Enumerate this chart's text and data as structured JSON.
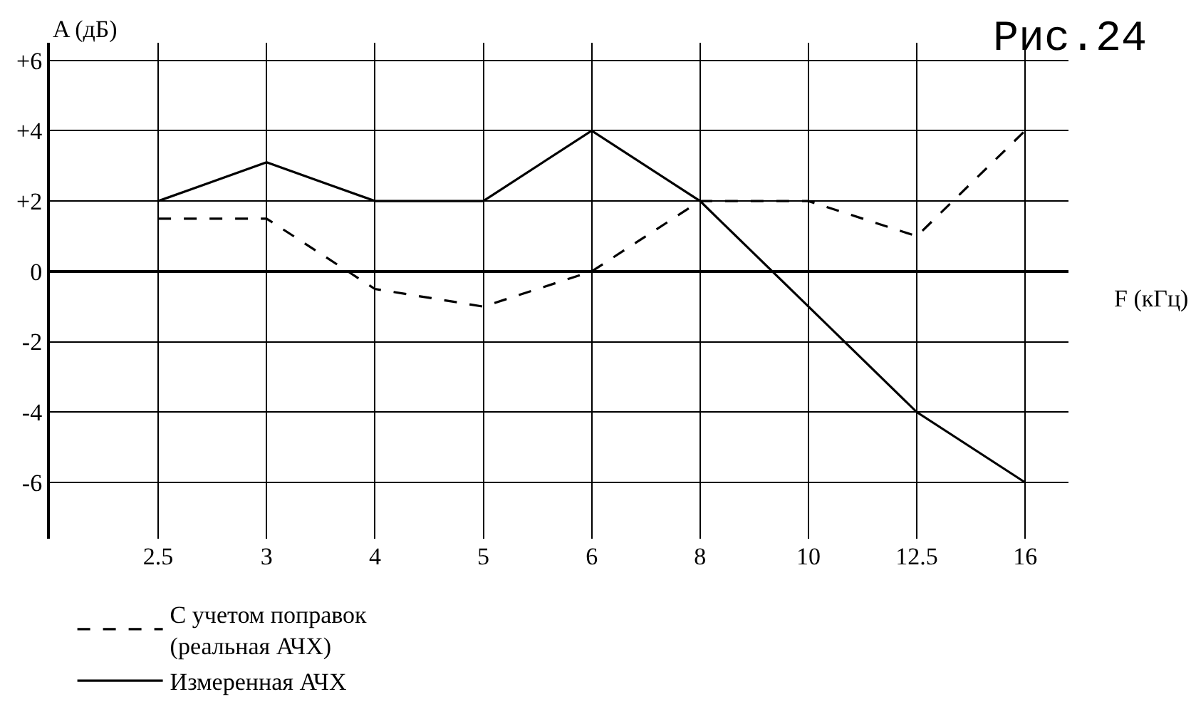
{
  "chart_data": {
    "type": "line",
    "title": "Рис.24",
    "xlabel": "F (кГц)",
    "ylabel": "A (дБ)",
    "categories": [
      "2.5",
      "3",
      "4",
      "5",
      "6",
      "8",
      "10",
      "12.5",
      "16"
    ],
    "series": [
      {
        "name": "С учетом поправок\n(реальная АЧХ)",
        "color": "#000000",
        "line_style": "dashed",
        "values": [
          1.5,
          1.5,
          -0.5,
          -1,
          0,
          2,
          2,
          1,
          4
        ]
      },
      {
        "name": "Измеренная АЧХ",
        "color": "#000000",
        "line_style": "solid",
        "values": [
          2,
          3.1,
          2,
          2,
          4,
          2,
          -1,
          -4,
          -6
        ]
      }
    ],
    "ylim": [
      -7.6,
      6.5
    ],
    "yticks": [
      {
        "value": 6,
        "label": "+6"
      },
      {
        "value": 4,
        "label": "+4"
      },
      {
        "value": 2,
        "label": "+2"
      },
      0,
      -2,
      -4,
      -6
    ],
    "grid": true,
    "legend": "bottom",
    "marker": "none"
  }
}
